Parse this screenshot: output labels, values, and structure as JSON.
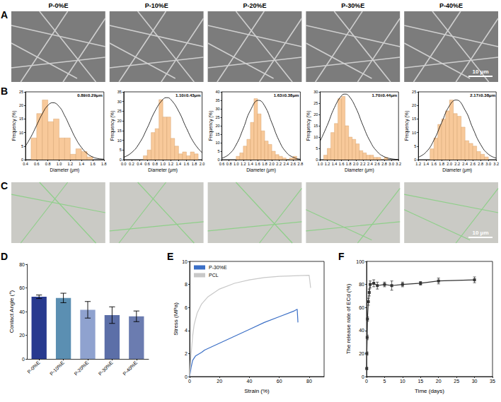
{
  "micrographs": [
    {
      "panel": "A",
      "titles": [
        "P-0%E",
        "P-10%E",
        "P-20%E",
        "P-30%E",
        "P-40%E"
      ],
      "scale_bar": "10 μm"
    },
    {
      "panel": "C",
      "scale_bar": "10 μm"
    }
  ],
  "chart_data": [
    {
      "type": "histogram",
      "panel": "B",
      "annotation": "0.89±0.29μm",
      "x_label": "Diameter (μm)",
      "y_label": "Frequency (%)",
      "bins": [
        0.5,
        0.6,
        0.7,
        0.8,
        0.9,
        1.0,
        1.1,
        1.2,
        1.3,
        1.4,
        1.5,
        1.6
      ],
      "counts": [
        8,
        17,
        22,
        14,
        15,
        8,
        8,
        2,
        4,
        3,
        1
      ],
      "color": "#f8c99a",
      "fit_curve": {
        "color": "#000000",
        "x": [
          0.4,
          0.5,
          0.6,
          0.7,
          0.8,
          0.89,
          1.0,
          1.1,
          1.2,
          1.3,
          1.4,
          1.5,
          1.6,
          1.7,
          1.8
        ],
        "y": [
          5.0,
          8.5,
          12.7,
          16.9,
          20.0,
          21,
          19.6,
          16.2,
          11.9,
          7.7,
          4.5,
          2.3,
          1.0,
          0.4,
          0.2
        ]
      },
      "xlim": [
        0.4,
        1.8
      ],
      "xticks": [
        0.4,
        0.6,
        0.8,
        {
          "value": 1,
          "label": "1.0"
        },
        1.2,
        1.4,
        1.6,
        1.8
      ],
      "ylim": [
        0,
        25
      ],
      "yticks": [
        0,
        5,
        10,
        15,
        20,
        25
      ],
      "grid": false
    },
    {
      "type": "histogram",
      "annotation": "1.10±0.43μm",
      "x_label": "Diameter (μm)",
      "y_label": "Frequency (%)",
      "bins": [
        0.5,
        0.6,
        0.7,
        0.8,
        0.9,
        1.0,
        1.1,
        1.2,
        1.3,
        1.4,
        1.5,
        1.6,
        1.7,
        1.8,
        1.9
      ],
      "counts": [
        2,
        5,
        14,
        16,
        31,
        22,
        22,
        11,
        7,
        3,
        4,
        2,
        4,
        3
      ],
      "color": "#f8c99a",
      "fit_curve": {
        "color": "#000000",
        "x": [
          0,
          0.2,
          0.4,
          0.6,
          0.8,
          1.0,
          1.1,
          1.2,
          1.4,
          1.6,
          1.8,
          2.0
        ],
        "y": [
          1.2,
          3.6,
          8.5,
          16.3,
          25.1,
          31.1,
          32,
          31.1,
          25.1,
          16.3,
          8.5,
          3.6
        ]
      },
      "xlim": [
        0,
        2
      ],
      "xticks": [
        {
          "value": 0,
          "label": "0.0"
        },
        0.2,
        0.4,
        0.6,
        0.8,
        {
          "value": 1,
          "label": "1.0"
        },
        1.2,
        1.4,
        1.6,
        1.8,
        {
          "value": 2,
          "label": "2.0"
        }
      ],
      "ylim": [
        0,
        35
      ],
      "yticks": [
        0,
        5,
        10,
        15,
        20,
        25,
        30,
        35
      ],
      "grid": false
    },
    {
      "type": "histogram",
      "annotation": "1.63±0.38μm",
      "x_label": "Diameter (μm)",
      "y_label": "Frequency (%)",
      "bins": [
        1.0,
        1.1,
        1.2,
        1.3,
        1.4,
        1.5,
        1.6,
        1.7,
        1.8,
        1.9,
        2.0,
        2.1,
        2.2,
        2.3,
        2.4,
        2.5,
        2.6,
        2.7
      ],
      "counts": [
        2,
        4,
        8,
        12,
        22,
        36,
        27,
        17,
        11,
        9,
        5,
        3,
        2,
        1,
        0,
        1,
        2
      ],
      "color": "#f8c99a",
      "fit_curve": {
        "color": "#000000",
        "x": [
          0.6,
          0.8,
          1.0,
          1.2,
          1.4,
          1.63,
          1.8,
          2.0,
          2.2,
          2.4,
          2.6,
          2.8
        ],
        "y": [
          0.9,
          3.2,
          8.8,
          18.4,
          29.1,
          35,
          31.7,
          21.8,
          11.4,
          4.5,
          1.4,
          0.3
        ]
      },
      "xlim": [
        0.6,
        2.8
      ],
      "xticks": [
        0.6,
        0.8,
        {
          "value": 1,
          "label": "1.0"
        },
        1.2,
        1.4,
        1.6,
        1.8,
        {
          "value": 2,
          "label": "2.0"
        },
        2.2,
        2.4,
        2.6,
        2.8
      ],
      "ylim": [
        0,
        40
      ],
      "yticks": [
        0,
        5,
        10,
        15,
        20,
        25,
        30,
        35,
        40
      ],
      "grid": false
    },
    {
      "type": "histogram",
      "annotation": "1.70±0.44μm",
      "x_label": "Diameter (μm)",
      "y_label": "Frequency (%)",
      "bins": [
        1.1,
        1.2,
        1.3,
        1.4,
        1.5,
        1.6,
        1.7,
        1.8,
        1.9,
        2.0,
        2.1,
        2.2,
        2.3,
        2.4,
        2.5,
        2.6,
        2.7,
        2.8,
        2.9
      ],
      "counts": [
        2,
        5,
        12,
        16,
        27,
        28,
        15,
        10,
        9,
        7,
        4,
        3,
        2,
        2,
        1,
        1,
        0,
        1
      ],
      "color": "#f8c99a",
      "fit_curve": {
        "color": "#000000",
        "x": [
          1.0,
          1.2,
          1.4,
          1.6,
          1.7,
          1.8,
          2.0,
          2.2,
          2.4,
          2.6,
          2.8,
          3.0,
          3.2
        ],
        "y": [
          8.2,
          15.2,
          23.0,
          28.3,
          29,
          28.3,
          23.0,
          15.2,
          8.2,
          3.6,
          1.3,
          0.4,
          0.1
        ]
      },
      "xlim": [
        1,
        3.2
      ],
      "xticks": [
        {
          "value": 1,
          "label": "1.0"
        },
        1.2,
        1.4,
        1.6,
        1.8,
        {
          "value": 2,
          "label": "2.0"
        },
        2.2,
        2.4,
        2.6,
        2.8,
        {
          "value": 3,
          "label": "3.0"
        },
        3.2
      ],
      "ylim": [
        0,
        30
      ],
      "yticks": [
        0,
        5,
        10,
        15,
        20,
        25,
        30
      ],
      "grid": false
    },
    {
      "type": "histogram",
      "annotation": "2.17±0.38μm",
      "x_label": "Diameter (μm)",
      "y_label": "Frequency (%)",
      "bins": [
        1.5,
        1.6,
        1.7,
        1.8,
        1.9,
        2.0,
        2.1,
        2.2,
        2.3,
        2.4,
        2.5,
        2.6,
        2.7,
        2.8,
        2.9,
        3.0
      ],
      "counts": [
        4,
        8,
        13,
        15,
        18,
        22,
        17,
        16,
        12,
        7,
        6,
        5,
        3,
        2,
        1
      ],
      "color": "#f8c99a",
      "fit_curve": {
        "color": "#000000",
        "x": [
          1.2,
          1.4,
          1.6,
          1.8,
          2.0,
          2.17,
          2.4,
          2.6,
          2.8,
          3.0,
          3.2
        ],
        "y": [
          0.9,
          2.8,
          7.2,
          13.7,
          19.9,
          22,
          18.3,
          11.6,
          5.6,
          2.0,
          0.6
        ]
      },
      "xlim": [
        1.2,
        3.2
      ],
      "xticks": [
        1.2,
        1.4,
        1.6,
        1.8,
        {
          "value": 2,
          "label": "2.0"
        },
        2.2,
        2.4,
        2.6,
        2.8,
        {
          "value": 3,
          "label": "3.0"
        },
        3.2
      ],
      "ylim": [
        0,
        25
      ],
      "yticks": [
        0,
        5,
        10,
        15,
        20,
        25
      ],
      "grid": false
    },
    {
      "type": "bar",
      "panel": "D",
      "y_label": "Contact Angle (°)",
      "categories": [
        "P-0%E",
        "P-10%E",
        "P-20%E",
        "P-30%E",
        "P-40%E"
      ],
      "values": [
        52.5,
        51.5,
        41.5,
        37,
        36
      ],
      "errors": [
        1.5,
        4,
        7,
        7,
        4.5
      ],
      "colors": [
        "#283a8f",
        "#5b8fb2",
        "#8fa2cf",
        "#5c6fa8",
        "#6b7cb0"
      ],
      "ylim": [
        0,
        80
      ],
      "yticks": [
        0,
        20,
        40,
        60,
        80
      ],
      "grid": false
    },
    {
      "type": "line",
      "panel": "E",
      "x_label": "Strain (%)",
      "y_label": "Stress (MPa)",
      "legend": "upper left",
      "series": [
        {
          "name": "P-30%E",
          "color": "#3b6fc6",
          "line_style": "solid",
          "x": [
            0,
            1,
            2,
            4,
            6,
            8,
            10,
            20,
            30,
            40,
            50,
            60,
            70,
            72,
            72.5
          ],
          "values": [
            0,
            0.8,
            1.4,
            1.8,
            1.95,
            2.1,
            2.3,
            2.9,
            3.5,
            4.1,
            4.7,
            5.2,
            5.7,
            5.85,
            4.7
          ]
        },
        {
          "name": "PCL",
          "color": "#c8c8c8",
          "line_style": "solid",
          "x": [
            0,
            1,
            2,
            3,
            5,
            8,
            12,
            20,
            30,
            40,
            50,
            60,
            70,
            80,
            81
          ],
          "values": [
            0,
            2,
            3.5,
            4.5,
            5.5,
            6.3,
            6.9,
            7.6,
            8.1,
            8.4,
            8.6,
            8.7,
            8.75,
            8.8,
            7.7
          ]
        }
      ],
      "xlim": [
        0,
        90
      ],
      "xticks": [
        0,
        20,
        40,
        60,
        80
      ],
      "ylim": [
        0,
        10
      ],
      "yticks": [
        0,
        2,
        4,
        6,
        8,
        10
      ],
      "grid": false
    },
    {
      "type": "line",
      "panel": "F",
      "x_label": "Time (days)",
      "y_label": "The release rate of ECd (%)",
      "color": "#333333",
      "marker": "square",
      "line_style": "solid",
      "x": [
        0.04,
        0.08,
        0.17,
        0.25,
        0.5,
        0.75,
        1,
        2,
        3,
        5,
        7,
        10,
        15,
        20,
        30
      ],
      "values": [
        7,
        20,
        34,
        50,
        65,
        73,
        80,
        81,
        79,
        80,
        79,
        80,
        81,
        83,
        84
      ],
      "errors": [
        1,
        1.5,
        2,
        2,
        3,
        3,
        3,
        3,
        3,
        2,
        4,
        2,
        1.5,
        2.5,
        2.5
      ],
      "xlim": [
        0,
        35
      ],
      "xticks": [
        0,
        5,
        10,
        15,
        20,
        25,
        30,
        35
      ],
      "ylim": [
        0,
        100
      ],
      "yticks": [
        0,
        20,
        40,
        60,
        80,
        100
      ],
      "grid": false
    }
  ]
}
